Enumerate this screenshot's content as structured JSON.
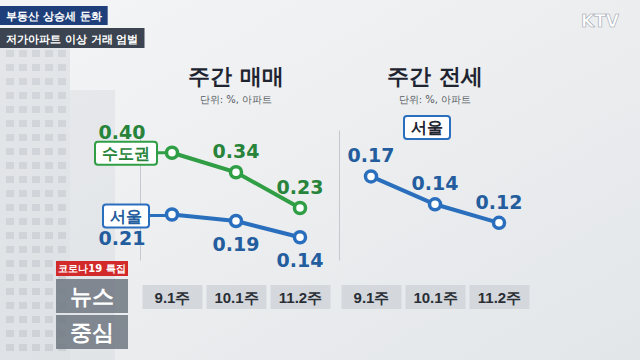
{
  "overlay": {
    "captions": [
      "부동산 상승세 둔화",
      "저가아파트 이상 거래 엄벌"
    ],
    "logo": "KTV",
    "badge": "코로나19 특집",
    "program": [
      "뉴스",
      "중심"
    ]
  },
  "chart_data": [
    {
      "type": "line",
      "title": "주간 매매",
      "subtitle": "단위: %, 아파트",
      "categories": [
        "9.1주",
        "10.1주",
        "11.2주"
      ],
      "series": [
        {
          "name": "수도권",
          "color": "#2f9e45",
          "values": [
            0.4,
            0.34,
            0.23
          ],
          "value_labels": [
            "0.40",
            "0.34",
            "0.23"
          ]
        },
        {
          "name": "서울",
          "color": "#2a6fbd",
          "values": [
            0.21,
            0.19,
            0.14
          ]
        }
      ],
      "ylim": [
        0.07,
        0.47
      ],
      "tick_labels": "x",
      "data_labels": true,
      "marker": "circle"
    },
    {
      "type": "line",
      "title": "주간 전세",
      "subtitle": "단위: %, 아파트",
      "categories": [
        "9.1주",
        "10.1주",
        "11.2주"
      ],
      "series": [
        {
          "name": "서울",
          "color": "#2a6fbd",
          "values": [
            0.17,
            0.14,
            0.12
          ]
        }
      ],
      "ylim": [
        0.08,
        0.22
      ],
      "tick_labels": "x",
      "data_labels": true,
      "marker": "circle"
    }
  ]
}
